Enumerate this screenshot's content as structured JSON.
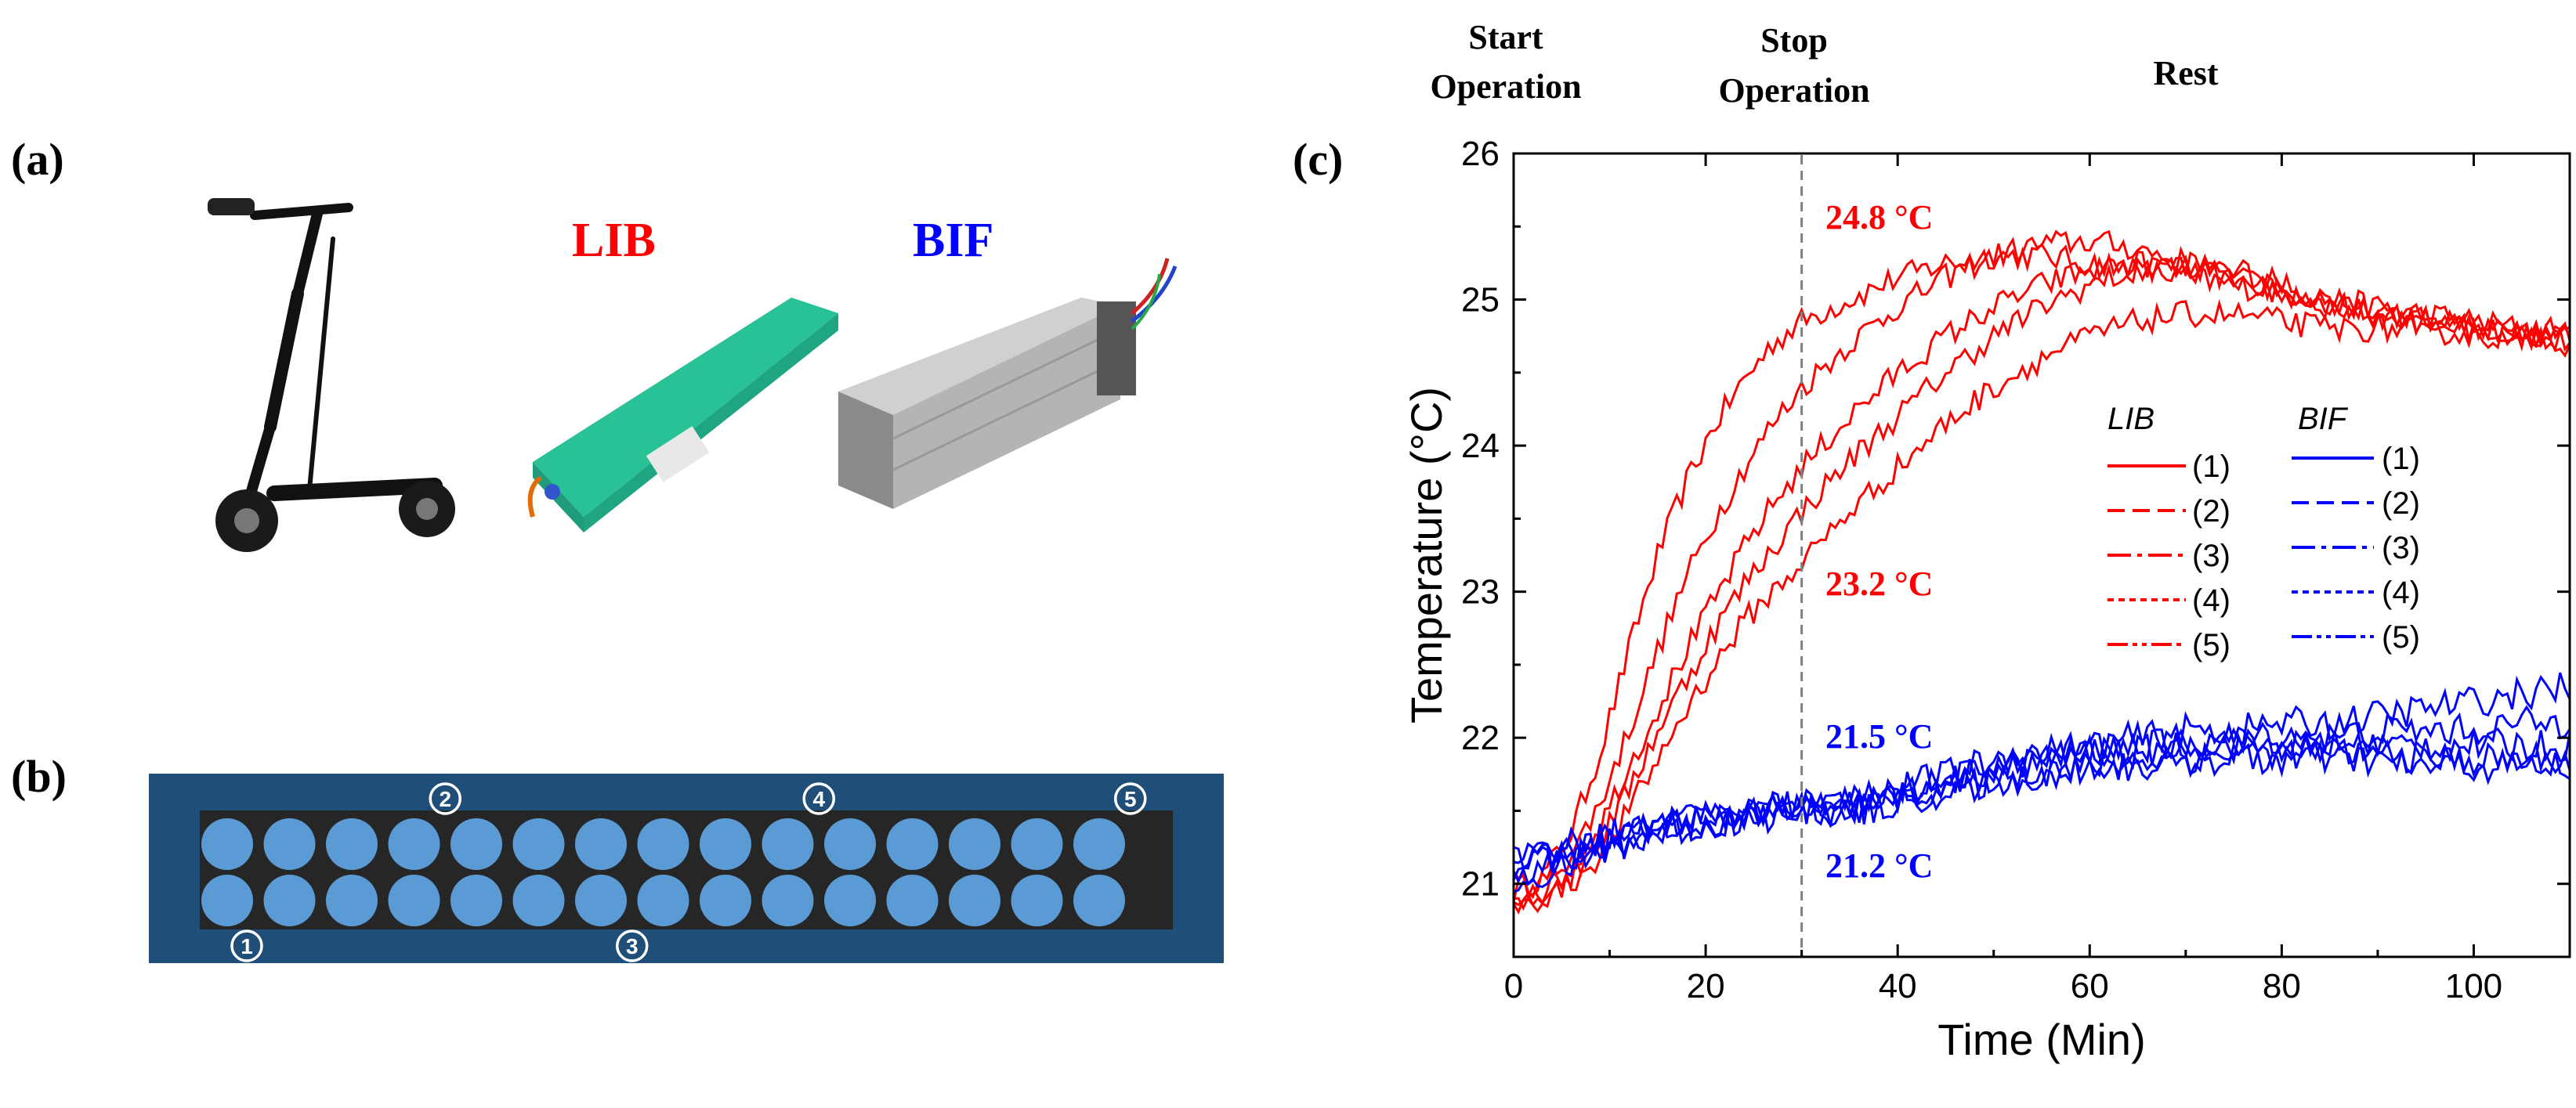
{
  "panels": {
    "a": "(a)",
    "b": "(b)",
    "c": "(c)"
  },
  "photos": {
    "lib_label": "LIB",
    "bif_label": "BIF",
    "lib_color": "#ff0000",
    "bif_color": "#0000ff"
  },
  "cell_layout": {
    "rows": 2,
    "cols": 15,
    "pack_color": "#1f4e79",
    "inner_color": "#262626",
    "cell_color": "#5b9bd5",
    "markers": [
      {
        "label": "1",
        "row": 1,
        "col": 0
      },
      {
        "label": "2",
        "row": 0,
        "col": 4
      },
      {
        "label": "3",
        "row": 1,
        "col": 7
      },
      {
        "label": "4",
        "row": 0,
        "col": 10
      },
      {
        "label": "5",
        "row": 0,
        "col": 15
      }
    ]
  },
  "chart_data": {
    "type": "line",
    "xlabel": "Time (Min)",
    "ylabel": "Temperature (°C)",
    "xlim": [
      0,
      110
    ],
    "ylim": [
      20.5,
      26
    ],
    "xticks": [
      0,
      20,
      40,
      60,
      80,
      100
    ],
    "yticks": [
      21,
      22,
      23,
      24,
      25,
      26
    ],
    "stop_line_x": 30,
    "phase_labels": {
      "start": [
        "Start",
        "Operation"
      ],
      "stop": [
        "Stop",
        "Operation"
      ],
      "rest": "Rest"
    },
    "annotations": [
      {
        "text": "24.8 °C",
        "color": "#ff0000"
      },
      {
        "text": "23.2 °C",
        "color": "#ff0000"
      },
      {
        "text": "21.5 °C",
        "color": "#0000ff"
      },
      {
        "text": "21.2 °C",
        "color": "#0000ff"
      }
    ],
    "legend": {
      "lib_title": "LIB",
      "bif_title": "BIF",
      "entries": [
        "(1)",
        "(2)",
        "(3)",
        "(4)",
        "(5)"
      ],
      "dashes": [
        "",
        "22,10",
        "30,8,6,8",
        "8,6",
        "26,6,6,6,6,6"
      ]
    },
    "series": [
      {
        "name": "LIB (1)",
        "color": "#ff0000",
        "x": [
          0,
          3,
          6,
          9,
          12,
          15,
          18,
          21,
          24,
          27,
          30,
          35,
          40,
          45,
          50,
          55,
          60,
          65,
          70,
          75,
          80,
          85,
          90,
          95,
          100,
          105,
          110
        ],
        "y": [
          20.95,
          21.05,
          21.35,
          21.9,
          22.6,
          23.25,
          23.75,
          24.15,
          24.45,
          24.7,
          24.85,
          25.0,
          25.15,
          25.25,
          25.3,
          25.3,
          25.25,
          25.2,
          25.15,
          25.1,
          25.05,
          25.0,
          24.95,
          24.9,
          24.85,
          24.8,
          24.8
        ]
      },
      {
        "name": "LIB (2)",
        "color": "#ff0000",
        "x": [
          0,
          3,
          6,
          9,
          12,
          15,
          18,
          21,
          24,
          27,
          30,
          35,
          40,
          45,
          50,
          55,
          60,
          65,
          70,
          75,
          80,
          85,
          90,
          95,
          100,
          105,
          110
        ],
        "y": [
          21.0,
          21.0,
          21.2,
          21.55,
          22.05,
          22.6,
          23.1,
          23.5,
          23.85,
          24.15,
          24.4,
          24.7,
          24.95,
          25.15,
          25.3,
          25.38,
          25.4,
          25.35,
          25.25,
          25.15,
          25.05,
          24.95,
          24.9,
          24.85,
          24.8,
          24.75,
          24.75
        ]
      },
      {
        "name": "LIB (3)",
        "color": "#ff0000",
        "x": [
          0,
          3,
          6,
          9,
          12,
          15,
          18,
          21,
          24,
          27,
          30,
          35,
          40,
          45,
          50,
          55,
          60,
          65,
          70,
          75,
          80,
          85,
          90,
          95,
          100,
          105,
          110
        ],
        "y": [
          20.9,
          20.95,
          21.1,
          21.4,
          21.8,
          22.2,
          22.6,
          22.95,
          23.3,
          23.6,
          23.85,
          24.2,
          24.5,
          24.75,
          24.95,
          25.1,
          25.2,
          25.25,
          25.2,
          25.15,
          25.05,
          24.95,
          24.9,
          24.85,
          24.8,
          24.75,
          24.7
        ]
      },
      {
        "name": "LIB (4)",
        "color": "#ff0000",
        "x": [
          0,
          3,
          6,
          9,
          12,
          15,
          18,
          21,
          24,
          27,
          30,
          35,
          40,
          45,
          50,
          55,
          60,
          65,
          70,
          75,
          80,
          85,
          90,
          95,
          100,
          105,
          110
        ],
        "y": [
          20.9,
          20.95,
          21.05,
          21.3,
          21.65,
          22.05,
          22.4,
          22.75,
          23.05,
          23.3,
          23.55,
          23.9,
          24.2,
          24.5,
          24.75,
          24.95,
          25.1,
          25.2,
          25.25,
          25.2,
          25.1,
          25.0,
          24.9,
          24.85,
          24.8,
          24.75,
          24.75
        ]
      },
      {
        "name": "LIB (5)",
        "color": "#ff0000",
        "x": [
          0,
          3,
          6,
          9,
          12,
          15,
          18,
          21,
          24,
          27,
          30,
          35,
          40,
          45,
          50,
          55,
          60,
          65,
          70,
          75,
          80,
          85,
          90,
          95,
          100,
          105,
          110
        ],
        "y": [
          20.85,
          20.9,
          21.0,
          21.2,
          21.5,
          21.85,
          22.2,
          22.5,
          22.8,
          23.0,
          23.2,
          23.55,
          23.85,
          24.15,
          24.4,
          24.6,
          24.75,
          24.85,
          24.9,
          24.9,
          24.85,
          24.8,
          24.8,
          24.8,
          24.75,
          24.75,
          24.75
        ]
      },
      {
        "name": "BIF (1)",
        "color": "#0000ff",
        "x": [
          0,
          5,
          10,
          15,
          20,
          25,
          30,
          35,
          40,
          45,
          50,
          55,
          60,
          65,
          70,
          75,
          80,
          85,
          90,
          95,
          100,
          105,
          110
        ],
        "y": [
          21.1,
          21.2,
          21.3,
          21.4,
          21.45,
          21.5,
          21.5,
          21.55,
          21.6,
          21.7,
          21.8,
          21.85,
          21.9,
          21.9,
          21.95,
          21.95,
          21.95,
          21.95,
          21.95,
          21.95,
          21.95,
          21.95,
          21.95
        ]
      },
      {
        "name": "BIF (2)",
        "color": "#0000ff",
        "x": [
          0,
          5,
          10,
          15,
          20,
          25,
          30,
          35,
          40,
          45,
          50,
          55,
          60,
          65,
          70,
          75,
          80,
          85,
          90,
          95,
          100,
          105,
          110
        ],
        "y": [
          21.2,
          21.25,
          21.35,
          21.4,
          21.45,
          21.5,
          21.55,
          21.6,
          21.65,
          21.75,
          21.85,
          21.9,
          21.95,
          22.0,
          22.05,
          22.05,
          22.1,
          22.1,
          22.15,
          22.2,
          22.25,
          22.3,
          22.35
        ]
      },
      {
        "name": "BIF (3)",
        "color": "#0000ff",
        "x": [
          0,
          5,
          10,
          15,
          20,
          25,
          30,
          35,
          40,
          45,
          50,
          55,
          60,
          65,
          70,
          75,
          80,
          85,
          90,
          95,
          100,
          105,
          110
        ],
        "y": [
          21.0,
          21.1,
          21.25,
          21.35,
          21.4,
          21.45,
          21.5,
          21.5,
          21.55,
          21.65,
          21.7,
          21.75,
          21.8,
          21.85,
          21.85,
          21.9,
          21.9,
          21.9,
          21.9,
          21.85,
          21.85,
          21.85,
          21.85
        ]
      },
      {
        "name": "BIF (4)",
        "color": "#0000ff",
        "x": [
          0,
          5,
          10,
          15,
          20,
          25,
          30,
          35,
          40,
          45,
          50,
          55,
          60,
          65,
          70,
          75,
          80,
          85,
          90,
          95,
          100,
          105,
          110
        ],
        "y": [
          21.15,
          21.2,
          21.3,
          21.4,
          21.45,
          21.5,
          21.55,
          21.55,
          21.6,
          21.7,
          21.8,
          21.85,
          21.9,
          21.95,
          21.95,
          22.0,
          22.0,
          22.0,
          22.05,
          22.05,
          22.05,
          22.1,
          22.1
        ]
      },
      {
        "name": "BIF (5)",
        "color": "#0000ff",
        "x": [
          0,
          5,
          10,
          15,
          20,
          25,
          30,
          35,
          40,
          45,
          50,
          55,
          60,
          65,
          70,
          75,
          80,
          85,
          90,
          95,
          100,
          105,
          110
        ],
        "y": [
          21.05,
          21.15,
          21.25,
          21.35,
          21.4,
          21.45,
          21.5,
          21.5,
          21.55,
          21.6,
          21.7,
          21.75,
          21.8,
          21.8,
          21.85,
          21.85,
          21.85,
          21.85,
          21.85,
          21.8,
          21.8,
          21.8,
          21.8
        ]
      }
    ]
  }
}
